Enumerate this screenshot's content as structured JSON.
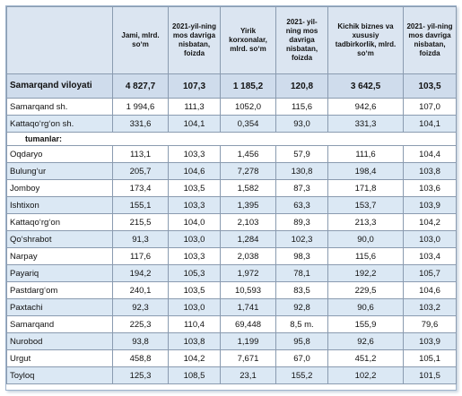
{
  "table": {
    "header": [
      "",
      "Jami, mlrd. soʻm",
      "2021-yil-ning mos davriga nisbatan, foizda",
      "Yirik korxonalar, mlrd. soʻm",
      "2021- yil-ning mos davriga nisbatan, foizda",
      "Kichik biznes va xususiy tadbirkorlik, mlrd. soʻm",
      "2021- yil-ning mos davriga nisbatan, foizda"
    ],
    "total": [
      "Samarqand viloyati",
      "4 827,7",
      "107,3",
      "1 185,2",
      "120,8",
      "3 642,5",
      "103,5"
    ],
    "rows": [
      [
        "Samarqand sh.",
        "1 994,6",
        "111,3",
        "1052,0",
        "115,6",
        "942,6",
        "107,0"
      ],
      [
        "Kattaqoʻrgʻon sh.",
        "331,6",
        "104,1",
        "0,354",
        "93,0",
        "331,3",
        "104,1"
      ]
    ],
    "subheader": "tumanlar:",
    "districts": [
      [
        "Oqdaryo",
        "113,1",
        "103,3",
        "1,456",
        "57,9",
        "111,6",
        "104,4"
      ],
      [
        "Bulungʻur",
        "205,7",
        "104,6",
        "7,278",
        "130,8",
        "198,4",
        "103,8"
      ],
      [
        "Jomboy",
        "173,4",
        "103,5",
        "1,582",
        "87,3",
        "171,8",
        "103,6"
      ],
      [
        "Ishtixon",
        "155,1",
        "103,3",
        "1,395",
        "63,3",
        "153,7",
        "103,9"
      ],
      [
        "Kattaqoʻrgʻon",
        "215,5",
        "104,0",
        "2,103",
        "89,3",
        "213,3",
        "104,2"
      ],
      [
        "Qoʻshrabot",
        "91,3",
        "103,0",
        "1,284",
        "102,3",
        "90,0",
        "103,0"
      ],
      [
        "Narpay",
        "117,6",
        "103,3",
        "2,038",
        "98,3",
        "115,6",
        "103,4"
      ],
      [
        "Payariq",
        "194,2",
        "105,3",
        "1,972",
        "78,1",
        "192,2",
        "105,7"
      ],
      [
        "Pastdargʻom",
        "240,1",
        "103,5",
        "10,593",
        "83,5",
        "229,5",
        "104,6"
      ],
      [
        "Paxtachi",
        "92,3",
        "103,0",
        "1,741",
        "92,8",
        "90,6",
        "103,2"
      ],
      [
        "Samarqand",
        "225,3",
        "110,4",
        "69,448",
        "8,5 m.",
        "155,9",
        "79,6"
      ],
      [
        "Nurobod",
        "93,8",
        "103,8",
        "1,199",
        "95,8",
        "92,6",
        "103,9"
      ],
      [
        "Urgut",
        "458,8",
        "104,2",
        "7,671",
        "67,0",
        "451,2",
        "105,1"
      ],
      [
        "Toyloq",
        "125,3",
        "108,5",
        "23,1",
        "155,2",
        "102,2",
        "101,5"
      ]
    ]
  }
}
